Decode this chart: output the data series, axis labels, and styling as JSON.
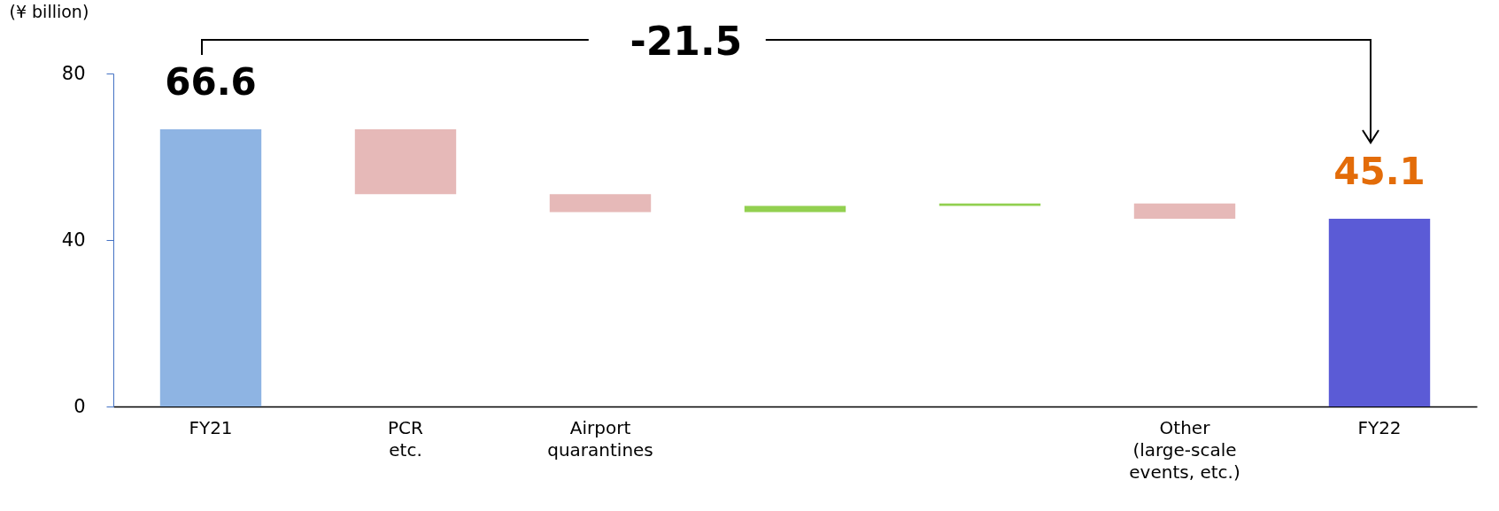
{
  "chart_data": {
    "type": "bar",
    "ylabel": "(¥ billion)",
    "categories": [
      "FY21",
      "PCR\netc.",
      "Airport\nquarantines",
      null,
      null,
      "Other\n(large-scale\nevents, etc.)",
      "FY22"
    ],
    "values": [
      66.6,
      -15.6,
      -4.3,
      1.5,
      0.6,
      -3.7,
      45.1
    ],
    "base": [
      0,
      66.6,
      51.0,
      46.7,
      48.2,
      48.8,
      0
    ],
    "colors": [
      "#8eb4e3",
      "#e6b9b8",
      "#e6b9b8",
      "#92d050",
      "#92d050",
      "#e6b9b8",
      "#5b5bd6"
    ],
    "value_labels": [
      "66.6",
      null,
      null,
      null,
      null,
      null,
      "45.1"
    ],
    "ylim": [
      0,
      80
    ],
    "yticks": [
      0,
      40,
      80
    ],
    "grid": false,
    "legend": false,
    "annotations": [
      "-21.5"
    ]
  }
}
